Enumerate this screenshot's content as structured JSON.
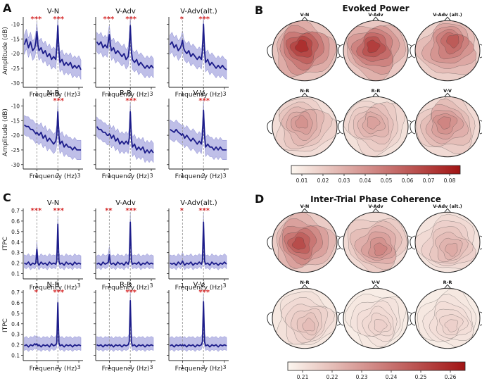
{
  "panel_letters": {
    "A": "A",
    "B": "B",
    "C": "C",
    "D": "D"
  },
  "colors": {
    "line": "#1c1c8a",
    "band": "#a9a9e0",
    "sig": "#d62728",
    "dash": "#9a9a9a",
    "topo_low": "#fcf6ef",
    "topo_high": "#a11414"
  },
  "chart_data": [
    {
      "panel": "A",
      "type": "line",
      "ylabel": "Amplitude (dB)",
      "xlabel": "Frequency (Hz)",
      "xlim": [
        0.35,
        3.2
      ],
      "xticks": [
        1,
        2,
        3
      ],
      "xtick_labels": [
        "1",
        "2",
        "3"
      ],
      "ylim": [
        -31.5,
        -7.5
      ],
      "yticks": [
        -30,
        -25,
        -20,
        -15,
        -10
      ],
      "ytick_labels": [
        "-30",
        "-25",
        "-20",
        "-15",
        "-10"
      ],
      "dashed_lines_at": [
        1,
        2
      ],
      "subplots": [
        {
          "title": "V-N",
          "sig_1hz": "***",
          "sig_2hz": "***",
          "x": [
            0.4,
            0.5,
            0.6,
            0.7,
            0.8,
            0.9,
            0.95,
            1.0,
            1.05,
            1.1,
            1.2,
            1.3,
            1.4,
            1.5,
            1.6,
            1.7,
            1.8,
            1.9,
            1.95,
            2.0,
            2.05,
            2.1,
            2.2,
            2.3,
            2.4,
            2.5,
            2.6,
            2.7,
            2.8,
            2.9,
            3.0,
            3.1
          ],
          "mean": [
            -17,
            -15,
            -18,
            -16,
            -19,
            -18,
            -16,
            -12.5,
            -17,
            -19,
            -18,
            -20,
            -19,
            -21,
            -20,
            -22,
            -21,
            -22,
            -18,
            -10.5,
            -19,
            -23,
            -22,
            -24,
            -23,
            -24,
            -23,
            -25,
            -24,
            -25,
            -24,
            -25.5
          ],
          "band": 3.3
        },
        {
          "title": "V-Adv",
          "sig_1hz": "***",
          "sig_2hz": "***",
          "x": [
            0.4,
            0.5,
            0.6,
            0.7,
            0.8,
            0.9,
            0.95,
            1.0,
            1.05,
            1.1,
            1.2,
            1.3,
            1.4,
            1.5,
            1.6,
            1.7,
            1.8,
            1.9,
            1.95,
            2.0,
            2.05,
            2.1,
            2.2,
            2.3,
            2.4,
            2.5,
            2.6,
            2.7,
            2.8,
            2.9,
            3.0,
            3.1
          ],
          "mean": [
            -16,
            -17,
            -16,
            -18,
            -17,
            -18,
            -16,
            -13.5,
            -17,
            -19,
            -18,
            -20,
            -19,
            -20,
            -21,
            -20,
            -22,
            -21,
            -18,
            -10.5,
            -19,
            -22,
            -23,
            -22,
            -24,
            -23,
            -24,
            -25,
            -24,
            -25,
            -24,
            -25
          ],
          "band": 3.3
        },
        {
          "title": "V-Adv(alt.)",
          "sig_1hz": "*",
          "sig_2hz": "***",
          "x": [
            0.4,
            0.5,
            0.6,
            0.7,
            0.8,
            0.9,
            0.95,
            1.0,
            1.05,
            1.1,
            1.2,
            1.3,
            1.4,
            1.5,
            1.6,
            1.7,
            1.8,
            1.9,
            1.95,
            2.0,
            2.05,
            2.1,
            2.2,
            2.3,
            2.4,
            2.5,
            2.6,
            2.7,
            2.8,
            2.9,
            3.0,
            3.1
          ],
          "mean": [
            -17,
            -16,
            -18,
            -17,
            -19,
            -18,
            -17,
            -15.5,
            -18,
            -19,
            -20,
            -19,
            -21,
            -20,
            -21,
            -22,
            -21,
            -22,
            -19,
            -10.0,
            -19,
            -23,
            -22,
            -24,
            -23,
            -24,
            -25,
            -24,
            -25,
            -24,
            -25,
            -25.5
          ],
          "band": 3.3
        },
        {
          "title": "N-R",
          "sig_1hz": "",
          "sig_2hz": "***",
          "x": [
            0.4,
            0.5,
            0.6,
            0.7,
            0.8,
            0.9,
            0.95,
            1.0,
            1.05,
            1.1,
            1.2,
            1.3,
            1.4,
            1.5,
            1.6,
            1.7,
            1.8,
            1.9,
            1.95,
            2.0,
            2.05,
            2.1,
            2.2,
            2.3,
            2.4,
            2.5,
            2.6,
            2.7,
            2.8,
            2.9,
            3.0,
            3.1
          ],
          "mean": [
            -16.5,
            -17,
            -17,
            -18,
            -18,
            -19,
            -19.5,
            -19,
            -19.5,
            -20,
            -19,
            -21,
            -20,
            -22,
            -21,
            -22,
            -23,
            -22,
            -20,
            -12.0,
            -20,
            -23,
            -22,
            -24,
            -23,
            -24,
            -24,
            -25,
            -24,
            -25,
            -25,
            -25
          ],
          "band": 3.3
        },
        {
          "title": "R-R",
          "sig_1hz": "",
          "sig_2hz": "***",
          "x": [
            0.4,
            0.5,
            0.6,
            0.7,
            0.8,
            0.9,
            0.95,
            1.0,
            1.05,
            1.1,
            1.2,
            1.3,
            1.4,
            1.5,
            1.6,
            1.7,
            1.8,
            1.9,
            1.95,
            2.0,
            2.05,
            2.1,
            2.2,
            2.3,
            2.4,
            2.5,
            2.6,
            2.7,
            2.8,
            2.9,
            3.0,
            3.1
          ],
          "mean": [
            -17,
            -18,
            -18,
            -19,
            -19,
            -20,
            -20,
            -19.5,
            -20,
            -21,
            -20,
            -22,
            -21,
            -23,
            -22,
            -23,
            -22,
            -23,
            -21,
            -12.0,
            -21,
            -24,
            -23,
            -25,
            -24,
            -25,
            -24,
            -26,
            -25,
            -26,
            -25,
            -26
          ],
          "band": 3.3
        },
        {
          "title": "V-V",
          "sig_1hz": "",
          "sig_2hz": "***",
          "x": [
            0.4,
            0.5,
            0.6,
            0.7,
            0.8,
            0.9,
            0.95,
            1.0,
            1.05,
            1.1,
            1.2,
            1.3,
            1.4,
            1.5,
            1.6,
            1.7,
            1.8,
            1.9,
            1.95,
            2.0,
            2.05,
            2.1,
            2.2,
            2.3,
            2.4,
            2.5,
            2.6,
            2.7,
            2.8,
            2.9,
            3.0,
            3.1
          ],
          "mean": [
            -18,
            -18.5,
            -19,
            -18,
            -19,
            -19.5,
            -20,
            -19.5,
            -20,
            -21,
            -20,
            -21,
            -22,
            -21,
            -22,
            -23,
            -22,
            -23,
            -20,
            -11.5,
            -20,
            -24,
            -23,
            -24,
            -24,
            -25,
            -24,
            -25,
            -24,
            -25,
            -25,
            -25
          ],
          "band": 3.3
        }
      ]
    },
    {
      "panel": "C",
      "type": "line",
      "ylabel": "ITPC",
      "xlabel": "Frequency (Hz)",
      "xlim": [
        0.35,
        3.2
      ],
      "xticks": [
        1,
        2,
        3
      ],
      "xtick_labels": [
        "1",
        "2",
        "3"
      ],
      "ylim": [
        0.05,
        0.72
      ],
      "yticks": [
        0.1,
        0.2,
        0.3,
        0.4,
        0.5,
        0.6,
        0.7
      ],
      "ytick_labels": [
        "0.1",
        "0.2",
        "0.3",
        "0.4",
        "0.5",
        "0.6",
        "0.7"
      ],
      "dashed_lines_at": [
        1,
        2
      ],
      "subplots": [
        {
          "title": "V-N",
          "sig_1hz": "***",
          "sig_2hz": "***",
          "x": [
            0.4,
            0.5,
            0.6,
            0.7,
            0.8,
            0.9,
            0.95,
            1.0,
            1.05,
            1.1,
            1.2,
            1.3,
            1.4,
            1.5,
            1.6,
            1.7,
            1.8,
            1.9,
            1.95,
            2.0,
            2.05,
            2.1,
            2.2,
            2.3,
            2.4,
            2.5,
            2.6,
            2.7,
            2.8,
            2.9,
            3.0,
            3.1
          ],
          "mean": [
            0.2,
            0.19,
            0.21,
            0.18,
            0.2,
            0.19,
            0.2,
            0.33,
            0.2,
            0.18,
            0.21,
            0.19,
            0.2,
            0.18,
            0.21,
            0.19,
            0.2,
            0.19,
            0.22,
            0.57,
            0.22,
            0.19,
            0.2,
            0.18,
            0.21,
            0.19,
            0.2,
            0.18,
            0.21,
            0.19,
            0.2,
            0.19
          ],
          "band": 0.08
        },
        {
          "title": "V-Adv",
          "sig_1hz": "**",
          "sig_2hz": "***",
          "x": [
            0.4,
            0.5,
            0.6,
            0.7,
            0.8,
            0.9,
            0.95,
            1.0,
            1.05,
            1.1,
            1.2,
            1.3,
            1.4,
            1.5,
            1.6,
            1.7,
            1.8,
            1.9,
            1.95,
            2.0,
            2.05,
            2.1,
            2.2,
            2.3,
            2.4,
            2.5,
            2.6,
            2.7,
            2.8,
            2.9,
            3.0,
            3.1
          ],
          "mean": [
            0.19,
            0.2,
            0.18,
            0.21,
            0.19,
            0.2,
            0.21,
            0.28,
            0.2,
            0.19,
            0.2,
            0.18,
            0.21,
            0.19,
            0.2,
            0.18,
            0.21,
            0.19,
            0.22,
            0.59,
            0.22,
            0.19,
            0.2,
            0.19,
            0.21,
            0.18,
            0.2,
            0.19,
            0.21,
            0.19,
            0.2,
            0.19
          ],
          "band": 0.08
        },
        {
          "title": "V-Adv(alt.)",
          "sig_1hz": "*",
          "sig_2hz": "***",
          "x": [
            0.4,
            0.5,
            0.6,
            0.7,
            0.8,
            0.9,
            0.95,
            1.0,
            1.05,
            1.1,
            1.2,
            1.3,
            1.4,
            1.5,
            1.6,
            1.7,
            1.8,
            1.9,
            1.95,
            2.0,
            2.05,
            2.1,
            2.2,
            2.3,
            2.4,
            2.5,
            2.6,
            2.7,
            2.8,
            2.9,
            3.0,
            3.1
          ],
          "mean": [
            0.2,
            0.19,
            0.2,
            0.18,
            0.21,
            0.19,
            0.2,
            0.22,
            0.2,
            0.18,
            0.2,
            0.19,
            0.21,
            0.18,
            0.2,
            0.19,
            0.21,
            0.19,
            0.22,
            0.59,
            0.22,
            0.19,
            0.2,
            0.18,
            0.21,
            0.19,
            0.2,
            0.18,
            0.2,
            0.19,
            0.21,
            0.19
          ],
          "band": 0.08
        },
        {
          "title": "N-R",
          "sig_1hz": "*",
          "sig_2hz": "***",
          "x": [
            0.4,
            0.5,
            0.6,
            0.7,
            0.8,
            0.9,
            0.95,
            1.0,
            1.05,
            1.1,
            1.2,
            1.3,
            1.4,
            1.5,
            1.6,
            1.7,
            1.8,
            1.9,
            1.95,
            2.0,
            2.05,
            2.1,
            2.2,
            2.3,
            2.4,
            2.5,
            2.6,
            2.7,
            2.8,
            2.9,
            3.0,
            3.1
          ],
          "mean": [
            0.19,
            0.2,
            0.18,
            0.2,
            0.19,
            0.21,
            0.2,
            0.21,
            0.19,
            0.2,
            0.18,
            0.2,
            0.19,
            0.2,
            0.18,
            0.21,
            0.19,
            0.2,
            0.22,
            0.6,
            0.22,
            0.19,
            0.2,
            0.18,
            0.2,
            0.19,
            0.2,
            0.18,
            0.2,
            0.19,
            0.2,
            0.19
          ],
          "band": 0.08
        },
        {
          "title": "R-R",
          "sig_1hz": "",
          "sig_2hz": "***",
          "x": [
            0.4,
            0.5,
            0.6,
            0.7,
            0.8,
            0.9,
            0.95,
            1.0,
            1.05,
            1.1,
            1.2,
            1.3,
            1.4,
            1.5,
            1.6,
            1.7,
            1.8,
            1.9,
            1.95,
            2.0,
            2.05,
            2.1,
            2.2,
            2.3,
            2.4,
            2.5,
            2.6,
            2.7,
            2.8,
            2.9,
            3.0,
            3.1
          ],
          "mean": [
            0.2,
            0.19,
            0.2,
            0.18,
            0.2,
            0.19,
            0.2,
            0.2,
            0.19,
            0.2,
            0.18,
            0.2,
            0.19,
            0.2,
            0.18,
            0.2,
            0.19,
            0.2,
            0.23,
            0.62,
            0.23,
            0.19,
            0.2,
            0.18,
            0.2,
            0.19,
            0.2,
            0.18,
            0.2,
            0.19,
            0.2,
            0.19
          ],
          "band": 0.08
        },
        {
          "title": "V-V",
          "sig_1hz": "",
          "sig_2hz": "***",
          "x": [
            0.4,
            0.5,
            0.6,
            0.7,
            0.8,
            0.9,
            0.95,
            1.0,
            1.05,
            1.1,
            1.2,
            1.3,
            1.4,
            1.5,
            1.6,
            1.7,
            1.8,
            1.9,
            1.95,
            2.0,
            2.05,
            2.1,
            2.2,
            2.3,
            2.4,
            2.5,
            2.6,
            2.7,
            2.8,
            2.9,
            3.0,
            3.1
          ],
          "mean": [
            0.19,
            0.2,
            0.18,
            0.2,
            0.19,
            0.2,
            0.19,
            0.2,
            0.19,
            0.2,
            0.18,
            0.2,
            0.19,
            0.2,
            0.18,
            0.2,
            0.19,
            0.2,
            0.23,
            0.61,
            0.23,
            0.19,
            0.2,
            0.18,
            0.2,
            0.19,
            0.2,
            0.18,
            0.2,
            0.19,
            0.2,
            0.19
          ],
          "band": 0.08
        }
      ]
    },
    {
      "panel": "B",
      "type": "heatmap",
      "title": "Evoked Power",
      "labels": [
        "V-N",
        "V-Adv",
        "V-Adv (alt.)",
        "N-R",
        "R-R",
        "V-V"
      ],
      "intensity": [
        0.075,
        0.07,
        0.06,
        0.04,
        0.035,
        0.045
      ],
      "colorbar_range": [
        0.005,
        0.085
      ],
      "colorbar_ticks": [
        0.01,
        0.02,
        0.03,
        0.04,
        0.05,
        0.06,
        0.07,
        0.08
      ],
      "colorbar_tick_labels": [
        "0.01",
        "0.02",
        "0.03",
        "0.04",
        "0.05",
        "0.06",
        "0.07",
        "0.08"
      ]
    },
    {
      "panel": "D",
      "type": "heatmap",
      "title": "Inter-Trial Phase Coherence",
      "labels": [
        "V-N",
        "V-Adv",
        "V-Adv (alt.)",
        "N-R",
        "V-V",
        "R-R"
      ],
      "intensity": [
        0.25,
        0.235,
        0.225,
        0.22,
        0.215,
        0.215
      ],
      "colorbar_range": [
        0.205,
        0.265
      ],
      "colorbar_ticks": [
        0.21,
        0.22,
        0.23,
        0.24,
        0.25,
        0.26
      ],
      "colorbar_tick_labels": [
        "0.21",
        "0.22",
        "0.23",
        "0.24",
        "0.25",
        "0.26"
      ]
    }
  ]
}
